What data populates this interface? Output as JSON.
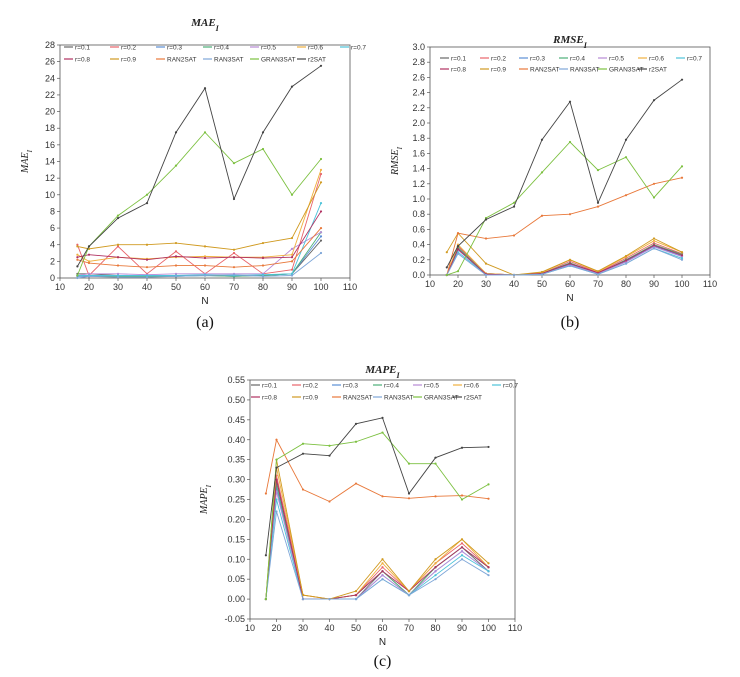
{
  "legend_order": [
    "r=0.1",
    "r=0.2",
    "r=0.3",
    "r=0.4",
    "r=0.5",
    "r=0.6",
    "r=0.7",
    "r=0.8",
    "r=0.9",
    "RAN2SAT",
    "RAN3SAT",
    "GRAN3SAT",
    "r2SAT"
  ],
  "colors": {
    "r=0.1": "#666666",
    "r=0.2": "#e8646a",
    "r=0.3": "#5b8fd6",
    "r=0.4": "#4caf78",
    "r=0.5": "#b78ad6",
    "r=0.6": "#f0b040",
    "r=0.7": "#4cc3d9",
    "r=0.8": "#b03060",
    "r=0.9": "#d09a20",
    "RAN2SAT": "#e8783a",
    "RAN3SAT": "#7ea6d8",
    "GRAN3SAT": "#7cc040",
    "r2SAT": "#444444"
  },
  "chart_data": [
    {
      "id": "a",
      "type": "line",
      "panel_label": "(a)",
      "title": "MAE_I",
      "title_main": "MAE",
      "title_sub": "I",
      "xlabel": "N",
      "ylabel": "MAE_I",
      "xlim": [
        10,
        110
      ],
      "ylim": [
        0,
        28
      ],
      "xticks": [
        10,
        20,
        30,
        40,
        50,
        60,
        70,
        80,
        90,
        100,
        110
      ],
      "yticks": [
        0,
        2,
        4,
        6,
        8,
        10,
        12,
        14,
        16,
        18,
        20,
        22,
        24,
        26,
        28
      ],
      "legend_labels": [
        "r=0.1",
        "r=0.2",
        "r=0.3",
        "r=0.4",
        "r=0.5",
        "r=0.6",
        "r=0.7",
        "r=0.8",
        "r=0.9",
        "RAN2SAT",
        "RAN3SAT",
        "GRAN3SAT",
        "r2SAT"
      ],
      "x": [
        16,
        20,
        30,
        40,
        50,
        60,
        70,
        80,
        90,
        100
      ],
      "series": [
        {
          "name": "r=0.1",
          "values": [
            0.5,
            0.5,
            0.3,
            0.3,
            0.3,
            0.3,
            0.3,
            0.3,
            0.5,
            4.5
          ]
        },
        {
          "name": "r=0.2",
          "values": [
            4.0,
            0.3,
            3.8,
            0.5,
            3.2,
            0.5,
            3.0,
            0.5,
            1.0,
            12.5
          ]
        },
        {
          "name": "r=0.3",
          "values": [
            0.2,
            0.2,
            0.2,
            0.2,
            0.2,
            0.3,
            0.2,
            0.3,
            0.5,
            5.0
          ]
        },
        {
          "name": "r=0.4",
          "values": [
            0.3,
            0.3,
            0.2,
            0.2,
            0.2,
            0.3,
            0.2,
            0.3,
            0.5,
            5.5
          ]
        },
        {
          "name": "r=0.5",
          "values": [
            0.3,
            0.5,
            0.5,
            0.4,
            0.5,
            0.5,
            0.5,
            0.5,
            3.5,
            5.5
          ]
        },
        {
          "name": "r=0.6",
          "values": [
            2.8,
            2.0,
            2.5,
            2.3,
            2.5,
            2.6,
            2.5,
            2.5,
            2.8,
            13.0
          ]
        },
        {
          "name": "r=0.7",
          "values": [
            0.3,
            0.3,
            0.3,
            0.3,
            0.3,
            0.4,
            0.3,
            0.4,
            0.5,
            9.0
          ]
        },
        {
          "name": "r=0.8",
          "values": [
            2.5,
            2.8,
            2.5,
            2.2,
            2.6,
            2.4,
            2.5,
            2.4,
            2.5,
            8.0
          ]
        },
        {
          "name": "r=0.9",
          "values": [
            3.8,
            3.5,
            4.0,
            4.0,
            4.2,
            3.8,
            3.4,
            4.2,
            4.8,
            11.5
          ]
        },
        {
          "name": "RAN2SAT",
          "values": [
            2.2,
            1.8,
            1.5,
            1.3,
            1.5,
            1.5,
            1.3,
            1.5,
            2.0,
            6.0
          ]
        },
        {
          "name": "RAN3SAT",
          "values": [
            0.0,
            0.2,
            0.1,
            0.1,
            0.2,
            0.3,
            0.4,
            0.2,
            0.3,
            3.0
          ]
        },
        {
          "name": "GRAN3SAT",
          "values": [
            0.3,
            3.8,
            7.5,
            10.0,
            13.5,
            17.5,
            13.8,
            15.5,
            10.0,
            14.3
          ]
        },
        {
          "name": "r2SAT",
          "values": [
            1.4,
            3.8,
            7.2,
            9.0,
            17.5,
            22.8,
            9.5,
            17.5,
            23.0,
            25.5
          ]
        }
      ]
    },
    {
      "id": "b",
      "type": "line",
      "panel_label": "(b)",
      "title": "RMSE_I",
      "title_main": "RMSE",
      "title_sub": "I",
      "xlabel": "N",
      "ylabel": "RMSE_I",
      "xlim": [
        10,
        110
      ],
      "ylim": [
        0,
        3.0
      ],
      "xticks": [
        10,
        20,
        30,
        40,
        50,
        60,
        70,
        80,
        90,
        100,
        110
      ],
      "yticks": [
        0.0,
        0.2,
        0.4,
        0.6,
        0.8,
        1.0,
        1.2,
        1.4,
        1.6,
        1.8,
        2.0,
        2.2,
        2.4,
        2.6,
        2.8,
        3.0
      ],
      "legend_labels": [
        "r=0.1",
        "r=0.2",
        "r=0.3",
        "r=0.4",
        "r=0.5",
        "r=0.6",
        "r=0.7",
        "r=0.8",
        "r=0.9",
        "RAN2SAT",
        "RAN3SAT",
        "GRAN3SAT",
        "r2SAT"
      ],
      "x": [
        16,
        20,
        30,
        40,
        50,
        60,
        70,
        80,
        90,
        100
      ],
      "series": [
        {
          "name": "r=0.1",
          "values": [
            0.0,
            0.38,
            0.02,
            0.0,
            0.02,
            0.15,
            0.02,
            0.2,
            0.38,
            0.28
          ]
        },
        {
          "name": "r=0.2",
          "values": [
            0.0,
            0.38,
            0.02,
            0.0,
            0.02,
            0.18,
            0.03,
            0.22,
            0.42,
            0.28
          ]
        },
        {
          "name": "r=0.3",
          "values": [
            0.0,
            0.35,
            0.01,
            0.0,
            0.01,
            0.14,
            0.02,
            0.18,
            0.38,
            0.25
          ]
        },
        {
          "name": "r=0.4",
          "values": [
            0.0,
            0.36,
            0.01,
            0.0,
            0.02,
            0.16,
            0.02,
            0.2,
            0.4,
            0.27
          ]
        },
        {
          "name": "r=0.5",
          "values": [
            0.0,
            0.33,
            0.01,
            0.0,
            0.01,
            0.13,
            0.02,
            0.17,
            0.37,
            0.24
          ]
        },
        {
          "name": "r=0.6",
          "values": [
            0.0,
            0.4,
            0.02,
            0.0,
            0.03,
            0.2,
            0.04,
            0.24,
            0.45,
            0.3
          ]
        },
        {
          "name": "r=0.7",
          "values": [
            0.0,
            0.3,
            0.01,
            0.0,
            0.01,
            0.12,
            0.01,
            0.15,
            0.35,
            0.22
          ]
        },
        {
          "name": "r=0.8",
          "values": [
            0.0,
            0.34,
            0.01,
            0.0,
            0.02,
            0.15,
            0.03,
            0.19,
            0.39,
            0.26
          ]
        },
        {
          "name": "r=0.9",
          "values": [
            0.3,
            0.55,
            0.15,
            0.0,
            0.04,
            0.2,
            0.05,
            0.25,
            0.48,
            0.3
          ]
        },
        {
          "name": "RAN2SAT",
          "values": [
            0.0,
            0.55,
            0.48,
            0.52,
            0.78,
            0.8,
            0.9,
            1.05,
            1.2,
            1.28
          ]
        },
        {
          "name": "RAN3SAT",
          "values": [
            0.0,
            0.28,
            0.0,
            0.0,
            0.01,
            0.12,
            0.01,
            0.15,
            0.35,
            0.2
          ]
        },
        {
          "name": "GRAN3SAT",
          "values": [
            0.0,
            0.05,
            0.75,
            0.95,
            1.35,
            1.75,
            1.38,
            1.55,
            1.02,
            1.43
          ]
        },
        {
          "name": "r2SAT",
          "values": [
            0.1,
            0.38,
            0.73,
            0.9,
            1.78,
            2.28,
            0.95,
            1.78,
            2.3,
            2.57
          ]
        }
      ]
    },
    {
      "id": "c",
      "type": "line",
      "panel_label": "(c)",
      "title": "MAPE_I",
      "title_main": "MAPE",
      "title_sub": "I",
      "xlabel": "N",
      "ylabel": "MAPE_I",
      "xlim": [
        10,
        110
      ],
      "ylim": [
        -0.05,
        0.55
      ],
      "xticks": [
        10,
        20,
        30,
        40,
        50,
        60,
        70,
        80,
        90,
        100,
        110
      ],
      "yticks": [
        -0.05,
        0.0,
        0.05,
        0.1,
        0.15,
        0.2,
        0.25,
        0.3,
        0.35,
        0.4,
        0.45,
        0.5,
        0.55
      ],
      "legend_labels": [
        "r=0.1",
        "r=0.2",
        "r=0.3",
        "r=0.4",
        "r=0.5",
        "r=0.6",
        "r=0.7",
        "r=0.8",
        "r=0.9",
        "RAN2SAT",
        "RAN3SAT",
        "GRAN3SAT",
        "r2SAT"
      ],
      "x": [
        16,
        20,
        30,
        40,
        50,
        60,
        70,
        80,
        90,
        100
      ],
      "series": [
        {
          "name": "r=0.1",
          "values": [
            0.0,
            0.3,
            0.0,
            0.0,
            0.0,
            0.07,
            0.01,
            0.08,
            0.13,
            0.07
          ]
        },
        {
          "name": "r=0.2",
          "values": [
            0.0,
            0.31,
            0.01,
            0.0,
            0.01,
            0.08,
            0.02,
            0.09,
            0.14,
            0.08
          ]
        },
        {
          "name": "r=0.3",
          "values": [
            0.0,
            0.28,
            0.0,
            0.0,
            0.0,
            0.06,
            0.01,
            0.07,
            0.12,
            0.07
          ]
        },
        {
          "name": "r=0.4",
          "values": [
            0.0,
            0.29,
            0.0,
            0.0,
            0.01,
            0.07,
            0.01,
            0.08,
            0.13,
            0.08
          ]
        },
        {
          "name": "r=0.5",
          "values": [
            0.0,
            0.27,
            0.0,
            0.0,
            0.0,
            0.06,
            0.01,
            0.07,
            0.12,
            0.07
          ]
        },
        {
          "name": "r=0.6",
          "values": [
            0.0,
            0.33,
            0.01,
            0.0,
            0.01,
            0.09,
            0.02,
            0.09,
            0.15,
            0.08
          ]
        },
        {
          "name": "r=0.7",
          "values": [
            0.0,
            0.25,
            0.0,
            0.0,
            0.0,
            0.05,
            0.01,
            0.06,
            0.11,
            0.07
          ]
        },
        {
          "name": "r=0.8",
          "values": [
            0.0,
            0.3,
            0.0,
            0.0,
            0.01,
            0.07,
            0.02,
            0.08,
            0.13,
            0.08
          ]
        },
        {
          "name": "r=0.9",
          "values": [
            0.0,
            0.35,
            0.01,
            0.0,
            0.02,
            0.1,
            0.02,
            0.1,
            0.15,
            0.09
          ]
        },
        {
          "name": "RAN2SAT",
          "values": [
            0.265,
            0.4,
            0.275,
            0.245,
            0.29,
            0.258,
            0.253,
            0.258,
            0.26,
            0.252
          ]
        },
        {
          "name": "RAN3SAT",
          "values": [
            0.0,
            0.22,
            0.0,
            0.0,
            0.0,
            0.05,
            0.01,
            0.05,
            0.1,
            0.06
          ]
        },
        {
          "name": "GRAN3SAT",
          "values": [
            0.0,
            0.35,
            0.39,
            0.385,
            0.395,
            0.418,
            0.34,
            0.34,
            0.25,
            0.288
          ]
        },
        {
          "name": "r2SAT",
          "values": [
            0.11,
            0.33,
            0.365,
            0.36,
            0.44,
            0.455,
            0.265,
            0.355,
            0.38,
            0.382
          ]
        }
      ]
    }
  ]
}
